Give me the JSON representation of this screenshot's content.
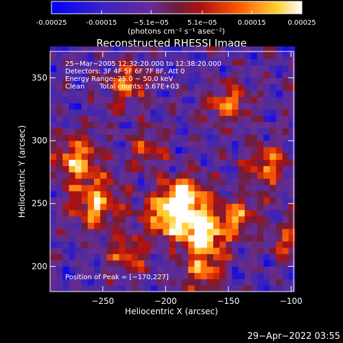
{
  "colorbar": {
    "tick_labels": [
      "-0.00025",
      "-0.00015",
      "−5.1e−05",
      "5.1e−05",
      "0.00015",
      "0.00025"
    ],
    "tick_values": [
      -0.00025,
      -0.00015,
      -5.1e-05,
      5.1e-05,
      0.00015,
      0.00025
    ],
    "range": [
      -0.00025,
      0.00025
    ],
    "unit_label": "(photons cm⁻² s⁻¹ asec⁻²)"
  },
  "chart_data": {
    "type": "heatmap",
    "title": "Reconstructed RHESSI Image",
    "xlabel": "Heliocentric X (arcsec)",
    "ylabel": "Heliocentric Y (arcsec)",
    "xlim": [
      -292,
      -98
    ],
    "ylim": [
      180,
      371
    ],
    "x_ticks": [
      -250,
      -200,
      -150,
      -100
    ],
    "y_ticks": [
      200,
      250,
      300,
      350
    ],
    "colormap": "RHESSI blue-purple-red-yellow-white",
    "peak_position": [
      -170,
      227
    ],
    "hot_regions": [
      {
        "x": -170,
        "y": 227,
        "intensity": 1.0,
        "spread": 14
      },
      {
        "x": -185,
        "y": 255,
        "intensity": 0.85,
        "spread": 12
      },
      {
        "x": -200,
        "y": 240,
        "intensity": 0.7,
        "spread": 12
      },
      {
        "x": -270,
        "y": 285,
        "intensity": 0.75,
        "spread": 13
      },
      {
        "x": -255,
        "y": 250,
        "intensity": 0.7,
        "spread": 14
      },
      {
        "x": -230,
        "y": 345,
        "intensity": 0.55,
        "spread": 12
      },
      {
        "x": -150,
        "y": 330,
        "intensity": 0.6,
        "spread": 12
      },
      {
        "x": -120,
        "y": 280,
        "intensity": 0.6,
        "spread": 12
      },
      {
        "x": -140,
        "y": 240,
        "intensity": 0.55,
        "spread": 10
      },
      {
        "x": -230,
        "y": 210,
        "intensity": 0.5,
        "spread": 12
      },
      {
        "x": -170,
        "y": 195,
        "intensity": 0.6,
        "spread": 10
      },
      {
        "x": -215,
        "y": 295,
        "intensity": 0.5,
        "spread": 10
      },
      {
        "x": -105,
        "y": 220,
        "intensity": 0.45,
        "spread": 10
      }
    ]
  },
  "annotations": {
    "time_range": "25−Mar−2005 12:32:20.000 to 12:38:20.000",
    "detectors": "Detectors: 3F 4F 5F 6F 7F 8F, Att 0",
    "energy_range": "Energy Range: 25.0 − 50.0 keV",
    "clean_label": "Clean",
    "total_counts": "Total counts: 5.67E+03",
    "peak_label": "Position of Peak = [−170,227]"
  },
  "footer": {
    "timestamp": "29−Apr−2022 03:55"
  }
}
